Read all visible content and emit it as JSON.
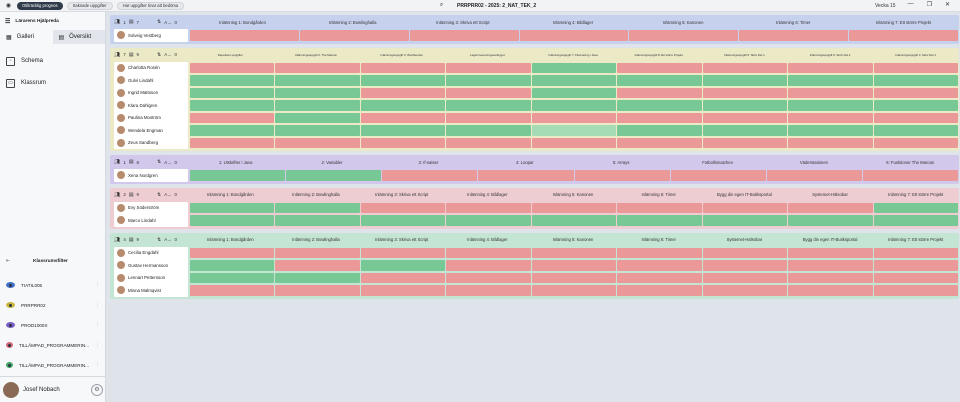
{
  "topbar": {
    "chip_primary": "Otillräcklig prognos",
    "chip_secondary": "Saknade uppgifter",
    "chip_tertiary": "Har uppgifter tinar att bedöma",
    "title": "PRRPRR02 - 2025: 2_NAT_TEK_2",
    "week": "Vecka 15"
  },
  "sidebar": {
    "header": "Lärarens Hjälpreda",
    "tabs": [
      {
        "label": "Galleri"
      },
      {
        "label": "Översikt"
      }
    ],
    "nav": [
      {
        "label": "Schema"
      },
      {
        "label": "Klassrum"
      }
    ],
    "filters_title": "Klassrumsfilter",
    "filters": [
      {
        "label": "TIATIL005",
        "color": "#3f6fc9"
      },
      {
        "label": "PRRPRR02",
        "color": "#c9b83f"
      },
      {
        "label": "PROD1000X",
        "color": "#7a5ec8"
      },
      {
        "label": "TILLÄMPAD_PROGRAMMERIN...",
        "color": "#d66a76"
      },
      {
        "label": "TILLÄMPAD_PROGRAMMERIN...",
        "color": "#3fa86a"
      }
    ],
    "user_name": "Josef Nobach"
  },
  "groups": [
    {
      "color": "blue",
      "students_count": "1",
      "tasks_count": "7",
      "score": "0",
      "weeks": [
        "Inlämning 1: Bondgården",
        "Inlämning 2: Bowlinghalla",
        "Inlämning 3: Skriva ett Script",
        "Inlämning 4: Bildlager",
        "Inlämning 5: Kanonen",
        "Inlämning 6: Timer",
        "Inlämning 7: Ett större Projekt"
      ],
      "students": [
        "Solveig Vestberg"
      ],
      "grid": [
        [
          "r",
          "r",
          "r",
          "r",
          "r",
          "r",
          "r"
        ]
      ]
    },
    {
      "color": "yellow",
      "students_count": "7",
      "tasks_count": "9",
      "score": "0",
      "small": true,
      "weeks": [
        "Repetition uppgifter",
        "Inlämningsuppgift 2: The Maroon",
        "Inlämningsuppgift 3: Wordbender",
        "Lagerinventeringsverktyget",
        "Inlämningsuppgift 7: Filsortering i Java",
        "Inlämningsuppgift 8: Ett större Projekt",
        "Inlämningsuppgift 5: Skriv Del 1",
        "Inlämningsuppgift 6: Skriv Del 2",
        "Inlämningsuppgift 4: Skriv Del 1"
      ],
      "students": [
        "Charlotta Rosén",
        "Gulvi Lindahl",
        "Ingrid Mattsson",
        "Klara Dahlgren",
        "Paulina Moström",
        "Wendela Engman",
        "Zeus Sandberg"
      ],
      "grid": [
        [
          "r",
          "r",
          "r",
          "r",
          "g",
          "r",
          "r",
          "r",
          "r"
        ],
        [
          "g",
          "g",
          "g",
          "g",
          "g",
          "g",
          "g",
          "g",
          "g"
        ],
        [
          "g",
          "g",
          "r",
          "r",
          "g",
          "r",
          "r",
          "r",
          "r"
        ],
        [
          "g",
          "g",
          "g",
          "g",
          "g",
          "g",
          "g",
          "g",
          "g"
        ],
        [
          "r",
          "g",
          "r",
          "r",
          "r",
          "r",
          "r",
          "r",
          "r"
        ],
        [
          "g",
          "g",
          "g",
          "g",
          "lg",
          "g",
          "g",
          "g",
          "g"
        ],
        [
          "r",
          "r",
          "r",
          "r",
          "r",
          "r",
          "r",
          "r",
          "r"
        ]
      ]
    },
    {
      "color": "purple",
      "students_count": "1",
      "tasks_count": "8",
      "score": "0",
      "weeks": [
        "1: Utskrifter i Java",
        "2: Variabler",
        "3: If-satser",
        "4: Loopar",
        "5: Arrays",
        "Fotbollsmatchen",
        "Väderstationen",
        "6: Funktioner The Maroon"
      ],
      "students": [
        "Xena Nordgren"
      ],
      "grid": [
        [
          "g",
          "g",
          "r",
          "r",
          "r",
          "r",
          "r",
          "r"
        ]
      ]
    },
    {
      "color": "pink",
      "students_count": "2",
      "tasks_count": "9",
      "score": "0",
      "weeks": [
        "Inlämning 1: Bondgården",
        "Inlämning 2: Bowlinghalla",
        "Inlämning 3: Skriva ett Script",
        "Inlämning 4: Bildlager",
        "Inlämning 5: Kanonen",
        "Inlämning 6: Timer",
        "Bygg din egen IT-Butiksportal",
        "Systemet-Hälsobar",
        "Inlämning 7: Ett större Projekt"
      ],
      "students": [
        "Evy Söderström",
        "Marco Lindahl"
      ],
      "grid": [
        [
          "g",
          "g",
          "r",
          "r",
          "r",
          "r",
          "r",
          "r",
          "g"
        ],
        [
          "g",
          "g",
          "g",
          "g",
          "g",
          "g",
          "g",
          "g",
          "g"
        ]
      ]
    },
    {
      "color": "green",
      "students_count": "4",
      "tasks_count": "9",
      "score": "0",
      "weeks": [
        "Inlämning 1: Bondgården",
        "Inlämning 2: Bowlinghalla",
        "Inlämning 3: Skriva ett Script",
        "Inlämning 4: Bildlager",
        "Inlämning 5: Kanonen",
        "Inlämning 6: Timer",
        "Systemet-Hälsobar",
        "Bygg din egen IT-Butiksportal",
        "Inlämning 7: Ett större Projekt"
      ],
      "students": [
        "Cecilia Engdahl",
        "Gustav Hermansson",
        "Lennart Pettersson",
        "Minna Malmqvist"
      ],
      "grid": [
        [
          "r",
          "r",
          "r",
          "r",
          "r",
          "r",
          "r",
          "r",
          "r"
        ],
        [
          "g",
          "r",
          "g",
          "r",
          "r",
          "r",
          "r",
          "r",
          "r"
        ],
        [
          "g",
          "g",
          "r",
          "r",
          "r",
          "r",
          "r",
          "r",
          "r"
        ],
        [
          "r",
          "r",
          "r",
          "r",
          "r",
          "r",
          "r",
          "r",
          "r"
        ]
      ]
    }
  ]
}
